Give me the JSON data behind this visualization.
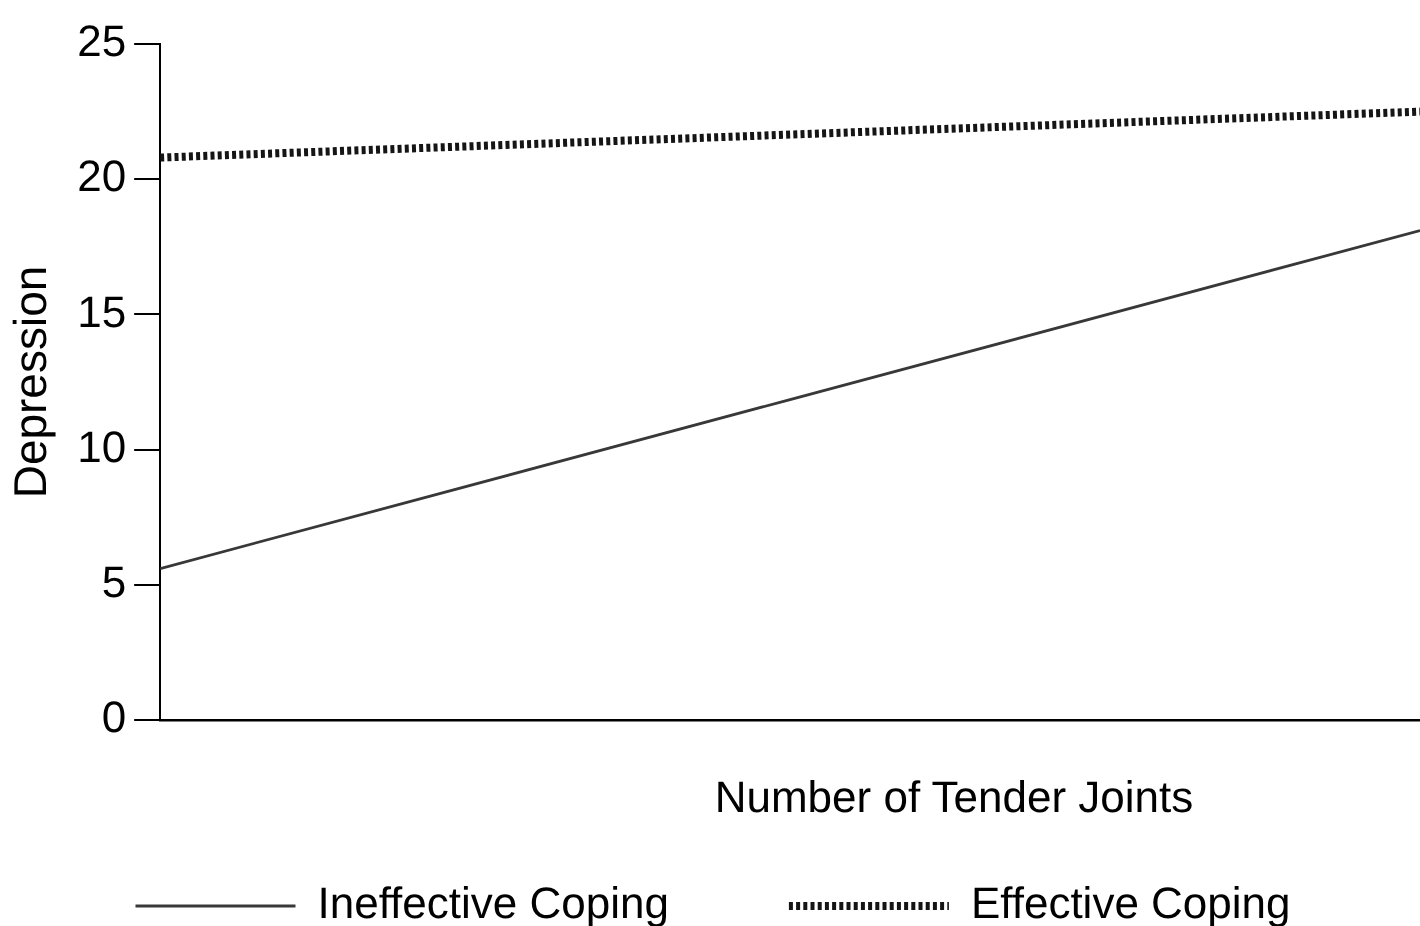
{
  "chart_data": {
    "type": "line",
    "xlabel": "Number of Tender Joints",
    "ylabel": "Depression",
    "categories": [
      null,
      null
    ],
    "series": [
      {
        "name": "Ineffective Coping",
        "color": "#383838",
        "values": [
          5.6,
          18.1
        ],
        "line_style": "solid"
      },
      {
        "name": "Effective Coping",
        "color": "#151515",
        "values": [
          20.8,
          22.5
        ],
        "line_style": "dotted"
      }
    ],
    "ylim": [
      0,
      25
    ],
    "yticks": [
      0,
      5,
      10,
      15,
      20,
      25
    ],
    "grid": false,
    "legend": "bottom",
    "marker": "none",
    "tick_labels": "y"
  }
}
